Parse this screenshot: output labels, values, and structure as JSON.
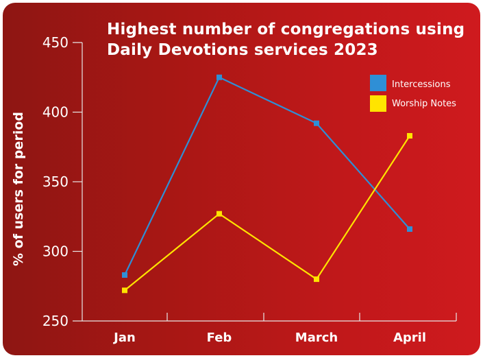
{
  "chart_data": {
    "type": "line",
    "title": "Highest number of congregations using Daily Devotions services 2023",
    "title_lines": [
      "Highest number of congregations using",
      "Daily Devotions services 2023"
    ],
    "xlabel": "",
    "ylabel": "% of users for period",
    "categories": [
      "Jan",
      "Feb",
      "March",
      "April"
    ],
    "ylim": [
      250,
      450
    ],
    "yticks": [
      250,
      300,
      350,
      400,
      450
    ],
    "grid": false,
    "legend_position": "top-right",
    "series": [
      {
        "name": "Intercessions",
        "values": [
          283,
          425,
          392,
          316
        ],
        "color": "#2f8fd6"
      },
      {
        "name": "Worship Notes",
        "values": [
          272,
          327,
          280,
          383
        ],
        "color": "#ffe400"
      }
    ]
  },
  "colors": {
    "background_start": "#8e1613",
    "background_end": "#cf1a1e",
    "text": "#ffffff",
    "axis": "#e8e8e8"
  }
}
